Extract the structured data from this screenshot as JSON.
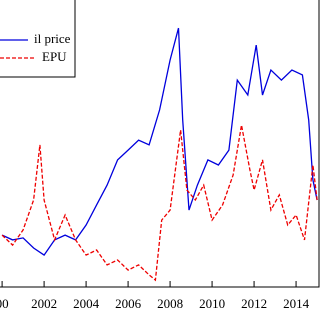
{
  "chart_data": {
    "type": "line",
    "legend": "top-left",
    "xlim": [
      1999.9,
      2015.14
    ],
    "xticks": [
      {
        "value": 2000,
        "label": "00"
      },
      2002,
      2004,
      2006,
      2008,
      2010,
      2012,
      2014
    ],
    "ylim": [
      0,
      100
    ],
    "series": [
      {
        "name": "il price",
        "color": "#0000dd",
        "dashed": false,
        "x": [
          2000,
          2000.5,
          2001,
          2001.5,
          2002,
          2002.5,
          2003,
          2003.5,
          2004,
          2004.5,
          2005,
          2005.5,
          2006,
          2006.5,
          2007,
          2007.5,
          2008,
          2008.4,
          2008.6,
          2008.9,
          2009.3,
          2009.8,
          2010.3,
          2010.8,
          2011.2,
          2011.7,
          2012.1,
          2012.4,
          2012.8,
          2013.3,
          2013.8,
          2014.3,
          2014.6,
          2014.8,
          2015
        ],
        "values": [
          18.1,
          16.4,
          17.1,
          13.6,
          11.1,
          16.4,
          18.1,
          16.4,
          21.6,
          28.6,
          35.5,
          44.3,
          47.7,
          51.2,
          49.5,
          61.7,
          79.1,
          90.2,
          58.2,
          26.8,
          35.5,
          44.3,
          42.5,
          47.7,
          72.1,
          66.9,
          84.3,
          66.9,
          75.6,
          72.1,
          75.6,
          73.9,
          58.2,
          37.3,
          30.3
        ]
      },
      {
        "name": "EPU",
        "color": "#ee0000",
        "dashed": true,
        "x": [
          2000,
          2000.5,
          2001,
          2001.5,
          2001.8,
          2002,
          2002.5,
          2003,
          2003.5,
          2004,
          2004.5,
          2005,
          2005.5,
          2006,
          2006.5,
          2007,
          2007.3,
          2007.6,
          2008,
          2008.5,
          2008.8,
          2009.2,
          2009.6,
          2010,
          2010.5,
          2011,
          2011.4,
          2011.8,
          2012,
          2012.4,
          2012.8,
          2013.2,
          2013.6,
          2014,
          2014.4,
          2014.8,
          2015
        ],
        "values": [
          18.1,
          14.6,
          19.9,
          30.3,
          49.5,
          30.3,
          16.4,
          25.1,
          16.4,
          11.1,
          12.9,
          7.7,
          9.4,
          5.9,
          7.7,
          4.2,
          2.4,
          23.3,
          26.8,
          54.7,
          33.8,
          30.3,
          35.5,
          23.3,
          28.6,
          39.0,
          56.4,
          40.8,
          33.8,
          44.3,
          26.8,
          32.1,
          21.6,
          25.1,
          16.4,
          42.5,
          30.3
        ]
      }
    ]
  }
}
